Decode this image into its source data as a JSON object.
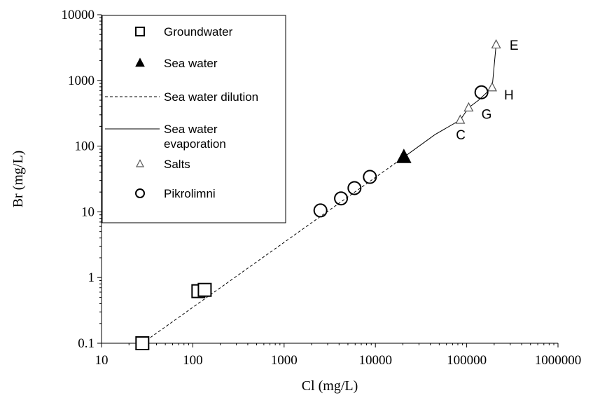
{
  "chart_data": {
    "type": "scatter",
    "xlabel": "Cl (mg/L)",
    "ylabel": "Br (mg/L)",
    "xscale": "log",
    "yscale": "log",
    "xlim": [
      10,
      1000000
    ],
    "ylim": [
      0.1,
      10000
    ],
    "xticks": [
      "10",
      "100",
      "1000",
      "10000",
      "100000",
      "1000000"
    ],
    "yticks": [
      "0.1",
      "1",
      "10",
      "100",
      "1000",
      "10000"
    ],
    "grid": false,
    "legend_position": "top-left",
    "series": [
      {
        "name": "Groundwater",
        "marker": "open-square",
        "points": [
          [
            28,
            0.1
          ],
          [
            115,
            0.62
          ],
          [
            135,
            0.65
          ]
        ]
      },
      {
        "name": "Sea water",
        "marker": "filled-triangle",
        "points": [
          [
            20500,
            68
          ]
        ]
      },
      {
        "name": "Sea water dilution",
        "marker": "dashed-line",
        "points": [
          [
            28,
            0.1
          ],
          [
            20500,
            68
          ]
        ]
      },
      {
        "name": "Sea water evaporation",
        "marker": "solid-line",
        "points": [
          [
            20500,
            68
          ],
          [
            45000,
            150
          ],
          [
            85000,
            250
          ],
          [
            105000,
            385
          ],
          [
            135000,
            500
          ],
          [
            190000,
            780
          ],
          [
            210000,
            3500
          ]
        ]
      },
      {
        "name": "Salts",
        "marker": "open-triangle",
        "points": [
          [
            85000,
            250
          ],
          [
            105000,
            385
          ],
          [
            190000,
            780
          ],
          [
            210000,
            3500
          ]
        ]
      },
      {
        "name": "Pikrolimni",
        "marker": "open-circle",
        "points": [
          [
            2500,
            10.5
          ],
          [
            4200,
            16
          ],
          [
            5900,
            23
          ],
          [
            8700,
            34
          ],
          [
            145000,
            660
          ]
        ]
      }
    ],
    "annotations": [
      {
        "text": "E",
        "x": 330000,
        "y": 3500
      },
      {
        "text": "H",
        "x": 290000,
        "y": 610
      },
      {
        "text": "G",
        "x": 165000,
        "y": 310
      },
      {
        "text": "C",
        "x": 86000,
        "y": 150
      }
    ]
  }
}
